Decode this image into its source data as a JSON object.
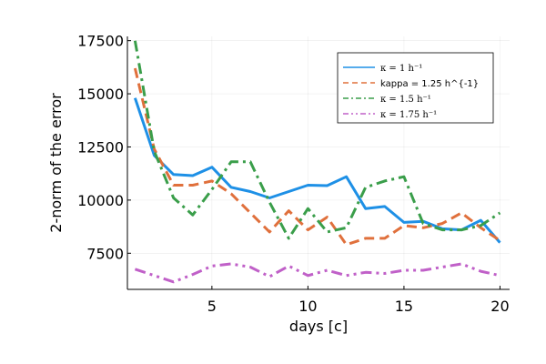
{
  "chart_data": {
    "type": "line",
    "title": "",
    "xlabel": "days [c]",
    "ylabel": "2-norm of the error",
    "xlim": [
      0.6,
      20.5
    ],
    "ylim": [
      5800,
      17700
    ],
    "xticks": [
      5,
      10,
      15,
      20
    ],
    "yticks": [
      7500,
      10000,
      12500,
      15000,
      17500
    ],
    "grid": true,
    "legend_position": "top-right",
    "x": [
      1,
      2,
      3,
      4,
      5,
      6,
      7,
      8,
      9,
      10,
      11,
      12,
      13,
      14,
      15,
      16,
      17,
      18,
      19,
      20
    ],
    "series": [
      {
        "name": "κ = 1 h⁻¹",
        "color": "#1e90e6",
        "dash": "solid",
        "values": [
          14800,
          12100,
          11200,
          11150,
          11550,
          10600,
          10400,
          10100,
          10400,
          10700,
          10680,
          11100,
          9600,
          9700,
          8950,
          9000,
          8650,
          8600,
          9050,
          8000
        ]
      },
      {
        "name": "kappa = 1.25 h^{-1}",
        "color": "#e0703c",
        "dash": "dash",
        "values": [
          16200,
          12400,
          10700,
          10700,
          10900,
          10300,
          9400,
          8500,
          9500,
          8600,
          9200,
          7900,
          8200,
          8200,
          8800,
          8700,
          8900,
          9400,
          8700,
          8100
        ]
      },
      {
        "name": "κ = 1.5 h⁻¹",
        "color": "#3a9e4a",
        "dash": "dashdot",
        "values": [
          17500,
          12300,
          10100,
          9300,
          10500,
          11800,
          11800,
          9900,
          8200,
          9600,
          8500,
          8700,
          10600,
          10900,
          11100,
          8900,
          8600,
          8600,
          8800,
          9400
        ]
      },
      {
        "name": "κ = 1.75 h⁻¹",
        "color": "#c060c8",
        "dash": "dashdotdot",
        "values": [
          6750,
          6450,
          6150,
          6500,
          6900,
          7000,
          6850,
          6400,
          6900,
          6450,
          6700,
          6450,
          6600,
          6550,
          6700,
          6700,
          6850,
          7000,
          6650,
          6450
        ]
      }
    ]
  }
}
